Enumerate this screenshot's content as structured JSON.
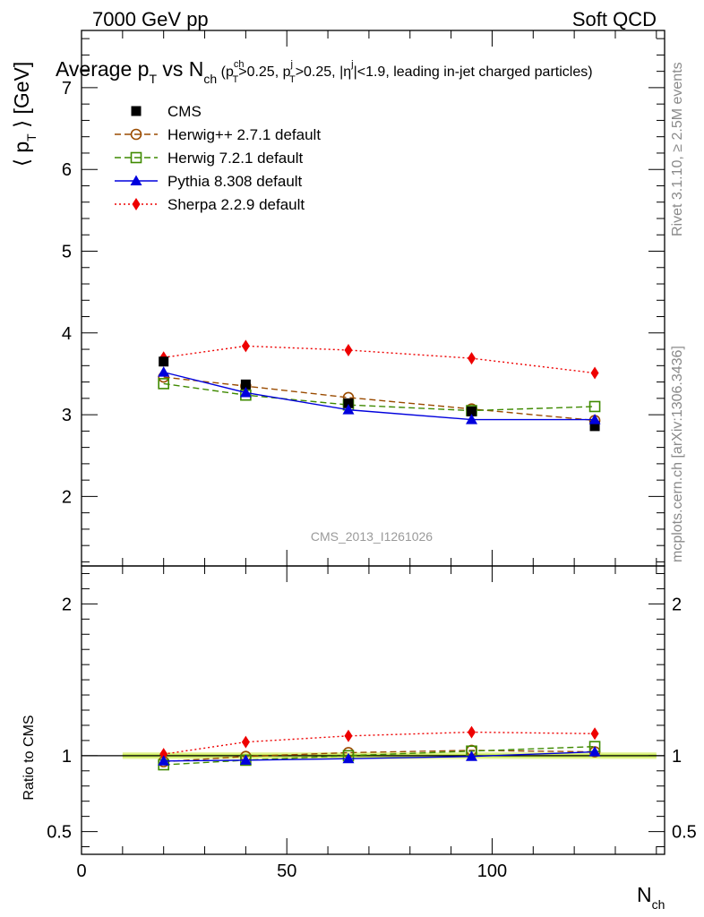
{
  "header": {
    "left": "7000 GeV pp",
    "right": "Soft QCD"
  },
  "side_labels": {
    "rivet": "Rivet 3.1.10, ≥ 2.5M events",
    "mcplots": "mcplots.cern.ch [arXiv:1306.3436]"
  },
  "chart_data": {
    "type": "line",
    "title": {
      "main": "Average p",
      "main_sub": "T",
      "vs": " vs N",
      "vs_sub": "ch",
      "cuts": " (p",
      "c1_sup": "ch",
      "c1_sub": "T",
      "c1_rest": ">0.25, p",
      "c2_sup": "j",
      "c2_sub": "T",
      "c2_rest": ">0.25, |η",
      "c3_sup": "j",
      "c3_rest": "|<1.9, leading in-jet charged particles)"
    },
    "watermark": "CMS_2013_I1261026",
    "xlabel": {
      "main": "N",
      "sub": "ch"
    },
    "ylabel": {
      "open": "⟨ p",
      "sub": "T",
      "close": " ⟩ [GeV]"
    },
    "ratio_ylabel": "Ratio to CMS",
    "xlim": [
      0,
      142
    ],
    "ylim": [
      1.15,
      7.7
    ],
    "ratio_ylim": [
      0.35,
      2.25
    ],
    "x_ticks": [
      0,
      50,
      100
    ],
    "x_tick_labels": [
      "0",
      "50",
      "100"
    ],
    "y_ticks": [
      2,
      3,
      4,
      5,
      6,
      7
    ],
    "y_tick_labels": [
      "2",
      "3",
      "4",
      "5",
      "6",
      "7"
    ],
    "ratio_ticks": [
      0.5,
      1,
      2
    ],
    "ratio_tick_labels": [
      "0.5",
      "1",
      "2"
    ],
    "x": [
      20,
      40,
      65,
      95,
      125
    ],
    "band_x_range": [
      10,
      140
    ],
    "series": [
      {
        "name": "CMS",
        "key": "cms",
        "color": "#000000",
        "marker": "square-filled",
        "line": "none",
        "values": [
          3.65,
          3.37,
          3.14,
          3.04,
          2.86
        ],
        "ratio": [
          1.0,
          1.0,
          1.0,
          1.0,
          1.0
        ]
      },
      {
        "name": "Herwig++ 2.7.1 default",
        "key": "herwigpp",
        "color": "#9a4b00",
        "marker": "circle-open",
        "line": "dashed",
        "values": [
          3.46,
          3.35,
          3.21,
          3.07,
          2.93
        ],
        "ratio": [
          0.96,
          0.995,
          1.02,
          1.035,
          1.025
        ]
      },
      {
        "name": "Herwig 7.2.1 default",
        "key": "herwig7",
        "color": "#3f8a00",
        "marker": "square-open",
        "line": "dashed",
        "values": [
          3.38,
          3.24,
          3.12,
          3.05,
          3.1
        ],
        "ratio": [
          0.94,
          0.97,
          1.0,
          1.03,
          1.06
        ]
      },
      {
        "name": "Pythia 8.308 default",
        "key": "pythia",
        "color": "#0000dd",
        "marker": "triangle-filled",
        "line": "solid",
        "values": [
          3.52,
          3.27,
          3.06,
          2.94,
          2.94
        ],
        "ratio": [
          0.965,
          0.97,
          0.98,
          0.995,
          1.025
        ]
      },
      {
        "name": "Sherpa 2.2.9 default",
        "key": "sherpa",
        "color": "#ee0000",
        "marker": "diamond-filled",
        "line": "dotted",
        "values": [
          3.7,
          3.84,
          3.79,
          3.69,
          3.51
        ],
        "ratio": [
          1.01,
          1.09,
          1.13,
          1.155,
          1.145
        ]
      }
    ]
  }
}
